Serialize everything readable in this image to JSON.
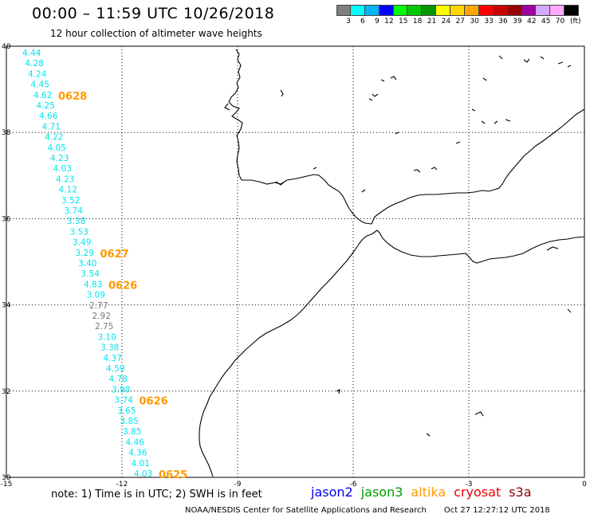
{
  "header": {
    "title": "00:00 – 11:59 UTC 10/26/2018",
    "subtitle": "12 hour collection of altimeter wave heights"
  },
  "legend": {
    "colors": [
      "#808080",
      "#00ffff",
      "#00b4ff",
      "#0000ff",
      "#00ff00",
      "#00c800",
      "#009600",
      "#ffff00",
      "#ffd700",
      "#ffa500",
      "#ff0000",
      "#c80000",
      "#960000",
      "#a000a0",
      "#d2aaff",
      "#ffaaff",
      "#000000"
    ],
    "labels": [
      "3",
      "6",
      "9",
      "12",
      "15",
      "18",
      "21",
      "24",
      "27",
      "30",
      "33",
      "36",
      "39",
      "42",
      "45",
      "70"
    ],
    "unit": "(ft)"
  },
  "axes": {
    "lon_ticks": [
      {
        "value": -15,
        "label": "-15"
      },
      {
        "value": -12,
        "label": "-12"
      },
      {
        "value": -9,
        "label": "-9"
      },
      {
        "value": -6,
        "label": "-6"
      },
      {
        "value": -3,
        "label": "-3"
      },
      {
        "value": 0,
        "label": "0"
      }
    ],
    "lat_ticks": [
      {
        "value": 40,
        "label": "40"
      },
      {
        "value": 38,
        "label": "38"
      },
      {
        "value": 36,
        "label": "36"
      },
      {
        "value": 34,
        "label": "34"
      },
      {
        "value": 32,
        "label": "32"
      },
      {
        "value": 30,
        "label": "30"
      }
    ],
    "lon_range": [
      -15,
      0
    ],
    "lat_range": [
      30,
      40
    ]
  },
  "track": {
    "readings": [
      {
        "value": "4.44",
        "color": "#00e5ee"
      },
      {
        "value": "4.28",
        "color": "#00e5ee"
      },
      {
        "value": "4.24",
        "color": "#00e5ee"
      },
      {
        "value": "4.45",
        "color": "#00e5ee"
      },
      {
        "value": "4.62",
        "color": "#00e5ee"
      },
      {
        "value": "4.25",
        "color": "#00e5ee"
      },
      {
        "value": "4.66",
        "color": "#00e5ee"
      },
      {
        "value": "4.71",
        "color": "#00e5ee"
      },
      {
        "value": "4.22",
        "color": "#00e5ee"
      },
      {
        "value": "4.05",
        "color": "#00e5ee"
      },
      {
        "value": "4.23",
        "color": "#00e5ee"
      },
      {
        "value": "4.03",
        "color": "#00e5ee"
      },
      {
        "value": "4.23",
        "color": "#00e5ee"
      },
      {
        "value": "4.12",
        "color": "#00e5ee"
      },
      {
        "value": "3.52",
        "color": "#00e5ee"
      },
      {
        "value": "3.74",
        "color": "#00e5ee"
      },
      {
        "value": "3.38",
        "color": "#00e5ee"
      },
      {
        "value": "3.53",
        "color": "#00e5ee"
      },
      {
        "value": "3.49",
        "color": "#00e5ee"
      },
      {
        "value": "3.29",
        "color": "#00e5ee"
      },
      {
        "value": "3.40",
        "color": "#00e5ee"
      },
      {
        "value": "3.54",
        "color": "#00e5ee"
      },
      {
        "value": "4.83",
        "color": "#00e5ee"
      },
      {
        "value": "3.09",
        "color": "#00e5ee"
      },
      {
        "value": "2.77",
        "color": "#777777"
      },
      {
        "value": "2.92",
        "color": "#777777"
      },
      {
        "value": "2.75",
        "color": "#777777"
      },
      {
        "value": "3.10",
        "color": "#00e5ee"
      },
      {
        "value": "3.38",
        "color": "#00e5ee"
      },
      {
        "value": "4.37",
        "color": "#00e5ee"
      },
      {
        "value": "4.59",
        "color": "#00e5ee"
      },
      {
        "value": "4.78",
        "color": "#00e5ee"
      },
      {
        "value": "3.98",
        "color": "#00e5ee"
      },
      {
        "value": "3.74",
        "color": "#00e5ee"
      },
      {
        "value": "3.65",
        "color": "#00e5ee"
      },
      {
        "value": "3.85",
        "color": "#00e5ee"
      },
      {
        "value": "3.85",
        "color": "#00e5ee"
      },
      {
        "value": "4.46",
        "color": "#00e5ee"
      },
      {
        "value": "4.36",
        "color": "#00e5ee"
      },
      {
        "value": "4.01",
        "color": "#00e5ee"
      },
      {
        "value": "4.03",
        "color": "#00e5ee"
      }
    ],
    "time_labels": [
      {
        "text": "0628",
        "after_index": 4
      },
      {
        "text": "0627",
        "after_index": 19
      },
      {
        "text": "0626",
        "after_index": 22
      },
      {
        "text": "0626",
        "after_index": 33
      },
      {
        "text": "0625",
        "after_index": 40
      }
    ],
    "time_label_color": "#ff9900"
  },
  "footer": {
    "note": "note: 1) Time is in UTC; 2) SWH is in feet",
    "satellites": [
      {
        "name": "jason2",
        "color": "#0000ee"
      },
      {
        "name": "jason3",
        "color": "#009900"
      },
      {
        "name": "altika",
        "color": "#ff9900"
      },
      {
        "name": "cryosat",
        "color": "#ee0000"
      },
      {
        "name": "s3a",
        "color": "#880000"
      }
    ],
    "credit": "NOAA/NESDIS Center for Satellite Applications and Research",
    "timestamp": "Oct 27 12:27:12 UTC 2018"
  }
}
